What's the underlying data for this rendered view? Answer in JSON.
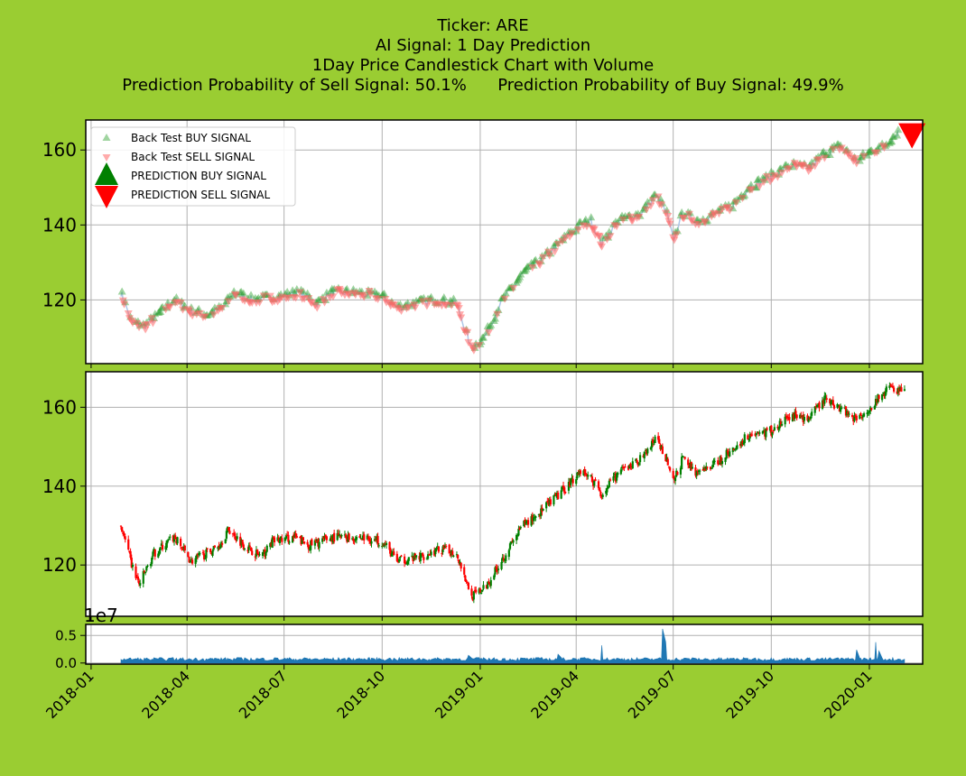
{
  "chart_data": {
    "title_lines": [
      "Ticker: ARE",
      "AI Signal: 1 Day Prediction",
      "1Day Price Candlestick Chart with Volume"
    ],
    "sell_probability_text": "Prediction Probability of Sell Signal: 50.1%",
    "buy_probability_text": "Prediction Probability of Buy Signal: 49.9%",
    "type": "line",
    "x_ticks": [
      "2018-01",
      "2018-04",
      "2018-07",
      "2018-10",
      "2019-01",
      "2019-04",
      "2019-07",
      "2019-10",
      "2020-01"
    ],
    "x_range": [
      "2017-12-27",
      "2020-02-20"
    ],
    "price_panel": {
      "ylim": [
        103,
        168
      ],
      "y_ticks": [
        120,
        140,
        160
      ],
      "grid": true,
      "legend": {
        "placement": "top-left",
        "entries": [
          "Back Test BUY SIGNAL",
          "Back Test SELL SIGNAL",
          "PREDICTION BUY SIGNAL",
          "PREDICTION SELL SIGNAL"
        ]
      },
      "price_path": [
        [
          "2018-01-29",
          122
        ],
        [
          "2018-02-08",
          114
        ],
        [
          "2018-02-20",
          113
        ],
        [
          "2018-03-01",
          115
        ],
        [
          "2018-03-20",
          120
        ],
        [
          "2018-04-05",
          117
        ],
        [
          "2018-04-20",
          116
        ],
        [
          "2018-05-05",
          118
        ],
        [
          "2018-05-15",
          122
        ],
        [
          "2018-06-01",
          120
        ],
        [
          "2018-07-01",
          121
        ],
        [
          "2018-07-15",
          122
        ],
        [
          "2018-08-01",
          119
        ],
        [
          "2018-08-15",
          122
        ],
        [
          "2018-09-01",
          122
        ],
        [
          "2018-10-01",
          121
        ],
        [
          "2018-10-15",
          118
        ],
        [
          "2018-11-01",
          119
        ],
        [
          "2018-11-20",
          120
        ],
        [
          "2018-12-10",
          119
        ],
        [
          "2018-12-24",
          107
        ],
        [
          "2019-01-05",
          110
        ],
        [
          "2019-01-20",
          119
        ],
        [
          "2019-02-10",
          127
        ],
        [
          "2019-03-01",
          131
        ],
        [
          "2019-03-20",
          136
        ],
        [
          "2019-04-05",
          140
        ],
        [
          "2019-04-15",
          141
        ],
        [
          "2019-04-25",
          135
        ],
        [
          "2019-05-10",
          141
        ],
        [
          "2019-06-01",
          143
        ],
        [
          "2019-06-15",
          148
        ],
        [
          "2019-06-25",
          143
        ],
        [
          "2019-07-01",
          136
        ],
        [
          "2019-07-10",
          143
        ],
        [
          "2019-07-25",
          141
        ],
        [
          "2019-08-10",
          143
        ],
        [
          "2019-08-25",
          145
        ],
        [
          "2019-09-10",
          150
        ],
        [
          "2019-10-01",
          153
        ],
        [
          "2019-10-20",
          156
        ],
        [
          "2019-11-05",
          155
        ],
        [
          "2019-11-20",
          159
        ],
        [
          "2019-12-05",
          161
        ],
        [
          "2019-12-20",
          157
        ],
        [
          "2020-01-05",
          160
        ],
        [
          "2020-01-15",
          161
        ],
        [
          "2020-01-28",
          165
        ]
      ],
      "prediction_sell_point": [
        "2020-02-10",
        164
      ]
    },
    "candle_panel": {
      "ylim": [
        107,
        169
      ],
      "y_ticks": [
        120,
        140,
        160
      ],
      "grid": true,
      "close_path": [
        [
          "2018-01-29",
          130
        ],
        [
          "2018-02-08",
          120
        ],
        [
          "2018-02-15",
          115
        ],
        [
          "2018-03-01",
          123
        ],
        [
          "2018-03-20",
          127
        ],
        [
          "2018-04-05",
          121
        ],
        [
          "2018-04-20",
          123
        ],
        [
          "2018-05-01",
          125
        ],
        [
          "2018-05-10",
          129
        ],
        [
          "2018-05-25",
          125
        ],
        [
          "2018-06-10",
          122
        ],
        [
          "2018-06-20",
          126
        ],
        [
          "2018-07-10",
          127
        ],
        [
          "2018-07-25",
          125
        ],
        [
          "2018-08-15",
          127
        ],
        [
          "2018-09-10",
          127
        ],
        [
          "2018-10-01",
          126
        ],
        [
          "2018-10-15",
          121
        ],
        [
          "2018-11-05",
          122
        ],
        [
          "2018-11-25",
          124
        ],
        [
          "2018-12-10",
          123
        ],
        [
          "2018-12-24",
          112
        ],
        [
          "2019-01-05",
          114
        ],
        [
          "2019-01-25",
          123
        ],
        [
          "2019-02-10",
          130
        ],
        [
          "2019-03-01",
          134
        ],
        [
          "2019-03-20",
          139
        ],
        [
          "2019-04-05",
          144
        ],
        [
          "2019-04-15",
          142
        ],
        [
          "2019-04-25",
          138
        ],
        [
          "2019-05-10",
          143
        ],
        [
          "2019-06-01",
          147
        ],
        [
          "2019-06-15",
          152
        ],
        [
          "2019-06-25",
          147
        ],
        [
          "2019-07-01",
          141
        ],
        [
          "2019-07-10",
          147
        ],
        [
          "2019-07-25",
          143
        ],
        [
          "2019-08-10",
          146
        ],
        [
          "2019-08-25",
          149
        ],
        [
          "2019-09-10",
          153
        ],
        [
          "2019-10-01",
          154
        ],
        [
          "2019-10-20",
          158
        ],
        [
          "2019-11-05",
          157
        ],
        [
          "2019-11-20",
          162
        ],
        [
          "2019-12-05",
          160
        ],
        [
          "2019-12-20",
          157
        ],
        [
          "2020-01-05",
          161
        ],
        [
          "2020-01-20",
          165
        ],
        [
          "2020-02-03",
          164
        ]
      ]
    },
    "volume_panel": {
      "exponent_label": "1e7",
      "ylim": [
        -0.02,
        0.7
      ],
      "y_ticks": [
        "0.0",
        "0.5"
      ],
      "grid": true,
      "spikes": [
        [
          "2019-04-25",
          0.32
        ],
        [
          "2019-06-21",
          0.62
        ],
        [
          "2019-06-24",
          0.38
        ],
        [
          "2019-12-20",
          0.24
        ],
        [
          "2020-01-07",
          0.38
        ],
        [
          "2020-01-10",
          0.22
        ],
        [
          "2019-03-15",
          0.16
        ],
        [
          "2018-12-21",
          0.14
        ]
      ]
    },
    "colors": {
      "background": "#9acd32",
      "axes_face": "#ffffff",
      "grid": "#b0b0b0",
      "price_line": "#aec7e8",
      "buy_marker": "#2ca02c",
      "sell_marker": "#ff6666",
      "prediction_buy": "#008000",
      "prediction_sell": "#ff0000",
      "candle_up": "#008000",
      "candle_down": "#ff0000",
      "volume": "#1f77b4"
    }
  }
}
